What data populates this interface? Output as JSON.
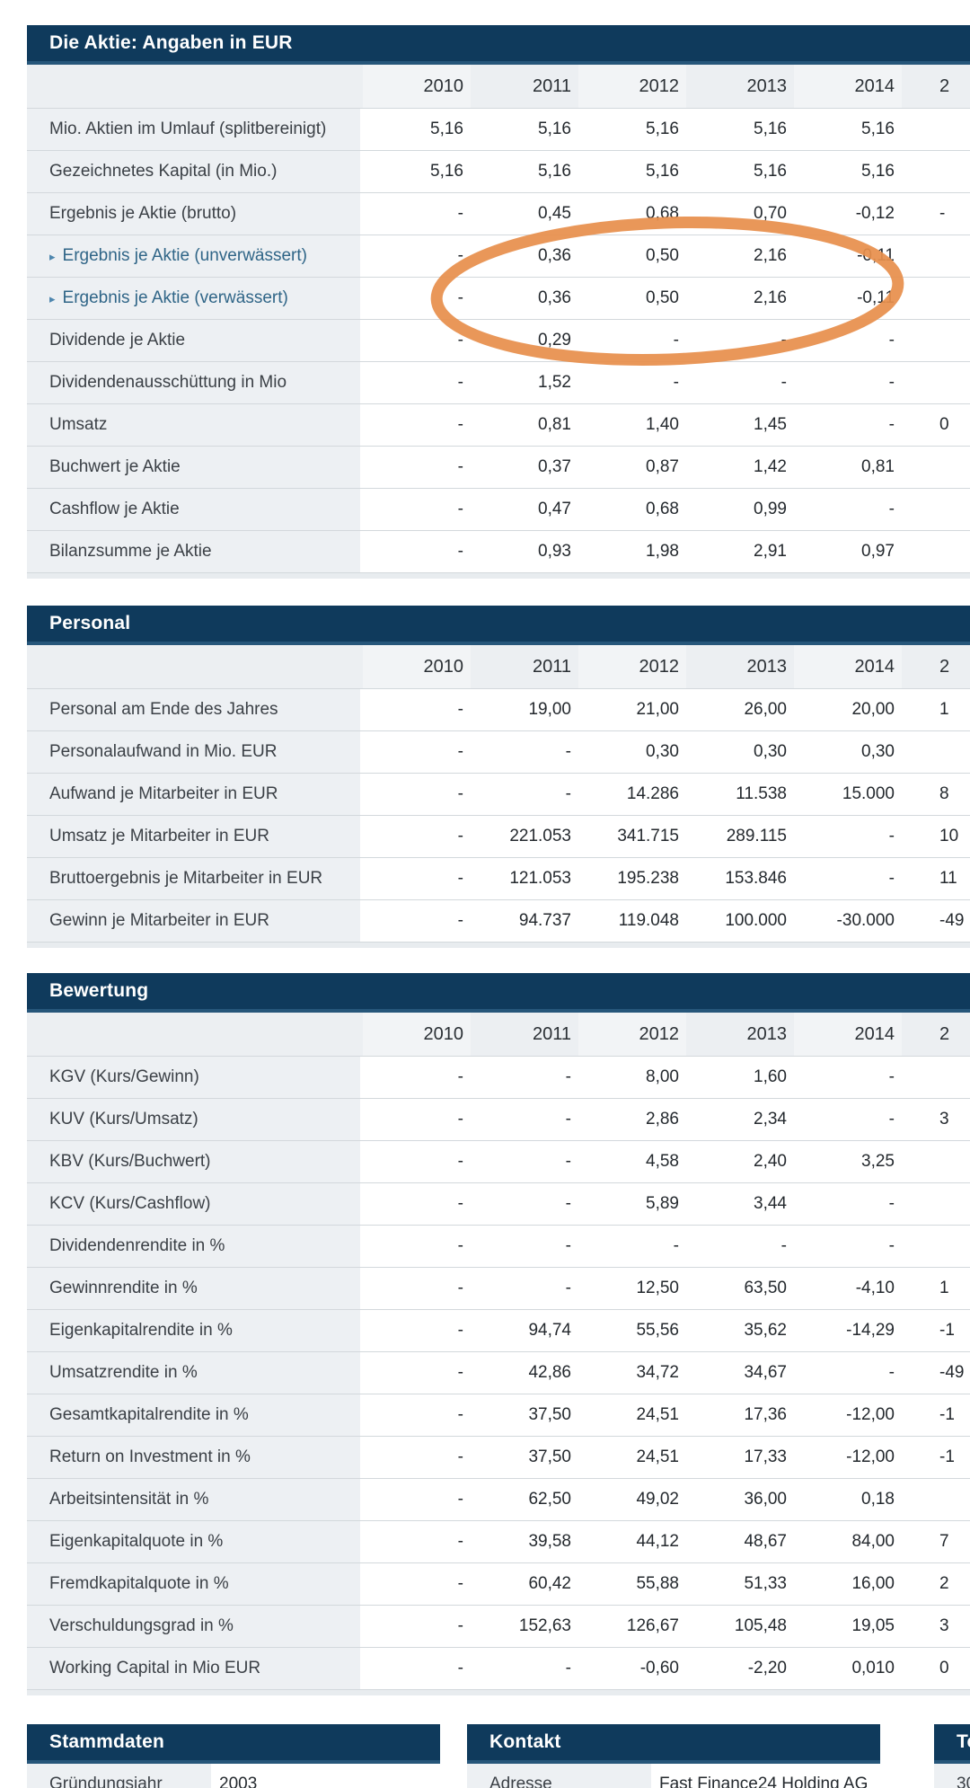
{
  "theme": {
    "header_bg": "#0F3A5C",
    "header_border": "#26567A",
    "label_bg": "#EDF0F3",
    "label_bg_header_dark": "#ECEFF2",
    "label_bg_header_light": "#F2F4F6",
    "row_border": "#D3D8DC",
    "sub_label": "#2F6587",
    "triangle": "#4E86AE",
    "accent_orange": "#E78F4C",
    "footer_strip": "#E8ECEF"
  },
  "annotation": {
    "shape": "ellipse",
    "purpose": "hand-drawn orange highlight circling the Ergebnis je Aktie (unverwässert/verwässert) values",
    "color": "#E78F4C"
  },
  "tables": [
    {
      "title": "Die Aktie: Angaben in EUR",
      "years": [
        "2010",
        "2011",
        "2012",
        "2013",
        "2014",
        "2"
      ],
      "rows": [
        {
          "label": "Mio. Aktien im Umlauf (splitbereinigt)",
          "sub": false,
          "values": [
            "5,16",
            "5,16",
            "5,16",
            "5,16",
            "5,16",
            ""
          ]
        },
        {
          "label": "Gezeichnetes Kapital (in Mio.)",
          "sub": false,
          "values": [
            "5,16",
            "5,16",
            "5,16",
            "5,16",
            "5,16",
            ""
          ]
        },
        {
          "label": "Ergebnis je Aktie (brutto)",
          "sub": false,
          "values": [
            "-",
            "0,45",
            "0,68",
            "0,70",
            "-0,12",
            "-"
          ]
        },
        {
          "label": "Ergebnis je Aktie (unverwässert)",
          "sub": true,
          "values": [
            "-",
            "0,36",
            "0,50",
            "2,16",
            "-0,11",
            ""
          ]
        },
        {
          "label": "Ergebnis je Aktie (verwässert)",
          "sub": true,
          "values": [
            "-",
            "0,36",
            "0,50",
            "2,16",
            "-0,11",
            ""
          ]
        },
        {
          "label": "Dividende je Aktie",
          "sub": false,
          "values": [
            "-",
            "0,29",
            "-",
            "-",
            "-",
            ""
          ]
        },
        {
          "label": "Dividendenausschüttung in Mio",
          "sub": false,
          "values": [
            "-",
            "1,52",
            "-",
            "-",
            "-",
            ""
          ]
        },
        {
          "label": "Umsatz",
          "sub": false,
          "values": [
            "-",
            "0,81",
            "1,40",
            "1,45",
            "-",
            "0"
          ]
        },
        {
          "label": "Buchwert je Aktie",
          "sub": false,
          "values": [
            "-",
            "0,37",
            "0,87",
            "1,42",
            "0,81",
            ""
          ]
        },
        {
          "label": "Cashflow je Aktie",
          "sub": false,
          "values": [
            "-",
            "0,47",
            "0,68",
            "0,99",
            "-",
            ""
          ]
        },
        {
          "label": "Bilanzsumme je Aktie",
          "sub": false,
          "values": [
            "-",
            "0,93",
            "1,98",
            "2,91",
            "0,97",
            ""
          ]
        }
      ]
    },
    {
      "title": "Personal",
      "years": [
        "2010",
        "2011",
        "2012",
        "2013",
        "2014",
        "2"
      ],
      "rows": [
        {
          "label": "Personal am Ende des Jahres",
          "sub": false,
          "values": [
            "-",
            "19,00",
            "21,00",
            "26,00",
            "20,00",
            "1"
          ]
        },
        {
          "label": "Personalaufwand in Mio. EUR",
          "sub": false,
          "values": [
            "-",
            "-",
            "0,30",
            "0,30",
            "0,30",
            ""
          ]
        },
        {
          "label": "Aufwand je Mitarbeiter in EUR",
          "sub": false,
          "values": [
            "-",
            "-",
            "14.286",
            "11.538",
            "15.000",
            "8"
          ]
        },
        {
          "label": "Umsatz je Mitarbeiter in EUR",
          "sub": false,
          "values": [
            "-",
            "221.053",
            "341.715",
            "289.115",
            "-",
            "10"
          ]
        },
        {
          "label": "Bruttoergebnis je Mitarbeiter in EUR",
          "sub": false,
          "values": [
            "-",
            "121.053",
            "195.238",
            "153.846",
            "-",
            "11"
          ]
        },
        {
          "label": "Gewinn je Mitarbeiter in EUR",
          "sub": false,
          "values": [
            "-",
            "94.737",
            "119.048",
            "100.000",
            "-30.000",
            "-49"
          ]
        }
      ]
    },
    {
      "title": "Bewertung",
      "years": [
        "2010",
        "2011",
        "2012",
        "2013",
        "2014",
        "2"
      ],
      "rows": [
        {
          "label": "KGV (Kurs/Gewinn)",
          "sub": false,
          "values": [
            "-",
            "-",
            "8,00",
            "1,60",
            "-",
            ""
          ]
        },
        {
          "label": "KUV (Kurs/Umsatz)",
          "sub": false,
          "values": [
            "-",
            "-",
            "2,86",
            "2,34",
            "-",
            "3"
          ]
        },
        {
          "label": "KBV (Kurs/Buchwert)",
          "sub": false,
          "values": [
            "-",
            "-",
            "4,58",
            "2,40",
            "3,25",
            ""
          ]
        },
        {
          "label": "KCV (Kurs/Cashflow)",
          "sub": false,
          "values": [
            "-",
            "-",
            "5,89",
            "3,44",
            "-",
            ""
          ]
        },
        {
          "label": "Dividendenrendite in %",
          "sub": false,
          "values": [
            "-",
            "-",
            "-",
            "-",
            "-",
            ""
          ]
        },
        {
          "label": "Gewinnrendite in %",
          "sub": false,
          "values": [
            "-",
            "-",
            "12,50",
            "63,50",
            "-4,10",
            "1"
          ]
        },
        {
          "label": "Eigenkapitalrendite in %",
          "sub": false,
          "values": [
            "-",
            "94,74",
            "55,56",
            "35,62",
            "-14,29",
            "-1"
          ]
        },
        {
          "label": "Umsatzrendite in %",
          "sub": false,
          "values": [
            "-",
            "42,86",
            "34,72",
            "34,67",
            "-",
            "-49"
          ]
        },
        {
          "label": "Gesamtkapitalrendite in %",
          "sub": false,
          "values": [
            "-",
            "37,50",
            "24,51",
            "17,36",
            "-12,00",
            "-1"
          ]
        },
        {
          "label": "Return on Investment in %",
          "sub": false,
          "values": [
            "-",
            "37,50",
            "24,51",
            "17,33",
            "-12,00",
            "-1"
          ]
        },
        {
          "label": "Arbeitsintensität in %",
          "sub": false,
          "values": [
            "-",
            "62,50",
            "49,02",
            "36,00",
            "0,18",
            ""
          ]
        },
        {
          "label": "Eigenkapitalquote in %",
          "sub": false,
          "values": [
            "-",
            "39,58",
            "44,12",
            "48,67",
            "84,00",
            "7"
          ]
        },
        {
          "label": "Fremdkapitalquote in %",
          "sub": false,
          "values": [
            "-",
            "60,42",
            "55,88",
            "51,33",
            "16,00",
            "2"
          ]
        },
        {
          "label": "Verschuldungsgrad in %",
          "sub": false,
          "values": [
            "-",
            "152,63",
            "126,67",
            "105,48",
            "19,05",
            "3"
          ]
        },
        {
          "label": "Working Capital in Mio EUR",
          "sub": false,
          "values": [
            "-",
            "-",
            "-0,60",
            "-2,20",
            "0,010",
            "0"
          ]
        }
      ]
    }
  ],
  "info_boxes": [
    {
      "title": "Stammdaten",
      "rows": [
        {
          "label": "Gründungsjahr",
          "value": "2003"
        }
      ]
    },
    {
      "title": "Kontakt",
      "rows": [
        {
          "label": "Adresse",
          "value": "Fast Finance24 Holding AG"
        }
      ]
    },
    {
      "title": "Te",
      "rows": [
        {
          "label": "30",
          "value": ""
        }
      ]
    }
  ]
}
